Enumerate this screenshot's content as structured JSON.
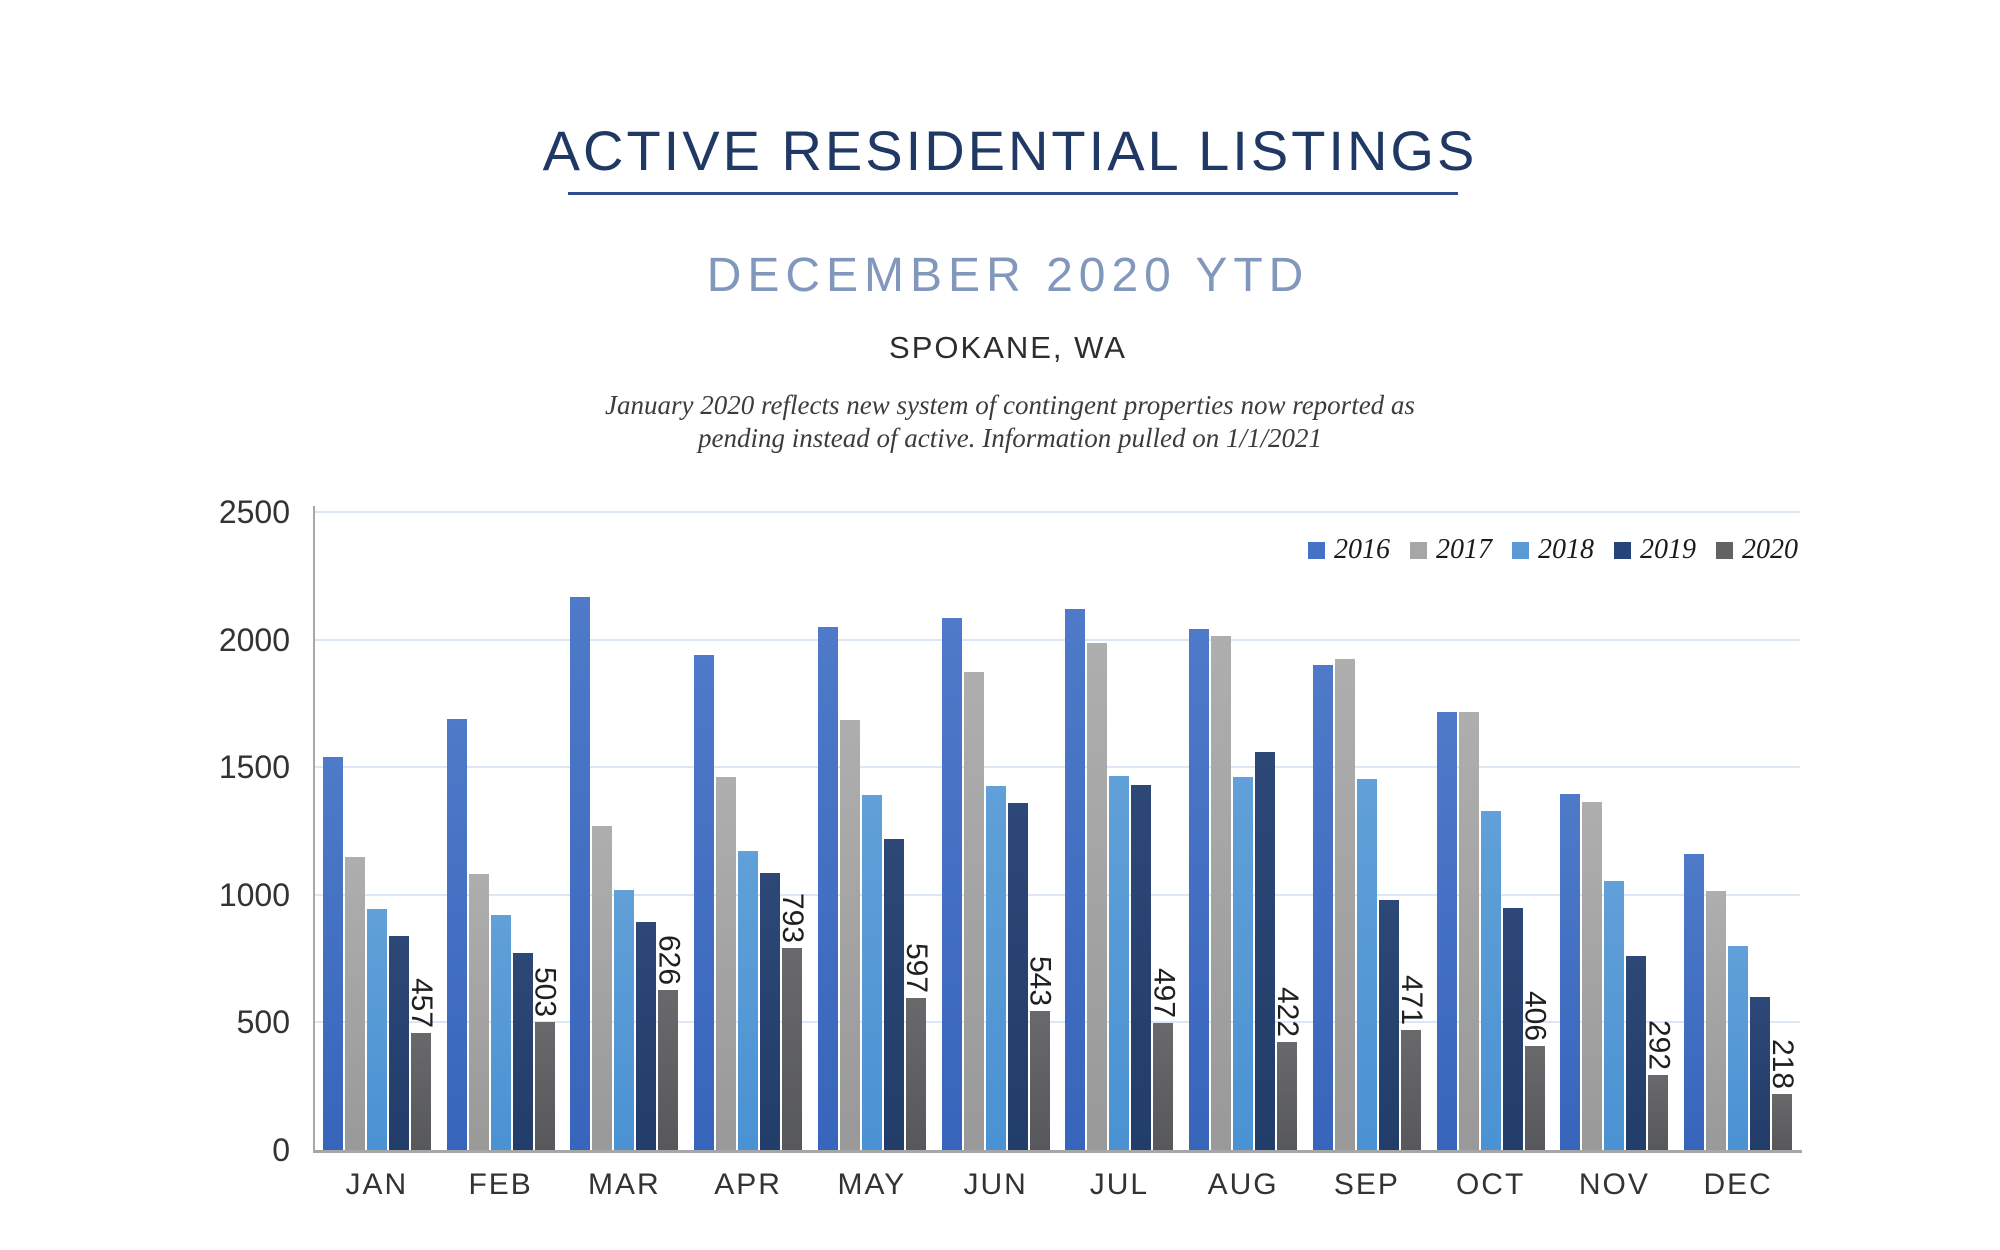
{
  "header": {
    "title": "ACTIVE RESIDENTIAL LISTINGS",
    "subtitle": "DECEMBER 2020 YTD",
    "location": "SPOKANE, WA",
    "note_line1": "January 2020 reflects new system of contingent properties now reported as",
    "note_line2": "pending instead of active.  Information pulled on 1/1/2021"
  },
  "colors": {
    "title": "#203864",
    "subtitle": "#8297bc",
    "gridline": "#dce6f4",
    "axis": "#a6a6a6",
    "data_label": "#1f1f1f"
  },
  "chart_data": {
    "type": "bar",
    "title": "Active residential listings by month, 2016-2020",
    "categories": [
      "JAN",
      "FEB",
      "MAR",
      "APR",
      "MAY",
      "JUN",
      "JUL",
      "AUG",
      "SEP",
      "OCT",
      "NOV",
      "DEC"
    ],
    "series": [
      {
        "name": "2016",
        "color": "#4472c4",
        "gradient_top": "#4e7ac9",
        "gradient_bottom": "#3765bb",
        "values": [
          1540,
          1690,
          2165,
          1940,
          2050,
          2085,
          2120,
          2040,
          1900,
          1715,
          1395,
          1160
        ]
      },
      {
        "name": "2017",
        "color": "#a6a6a6",
        "gradient_top": "#aeaeae",
        "gradient_bottom": "#999999",
        "values": [
          1150,
          1080,
          1270,
          1460,
          1685,
          1875,
          1985,
          2015,
          1925,
          1715,
          1365,
          1015
        ]
      },
      {
        "name": "2018",
        "color": "#5b9bd5",
        "gradient_top": "#61a0d8",
        "gradient_bottom": "#4a92d3",
        "values": [
          945,
          920,
          1020,
          1170,
          1390,
          1425,
          1465,
          1460,
          1455,
          1330,
          1055,
          800
        ]
      },
      {
        "name": "2019",
        "color": "#264478",
        "gradient_top": "#2d4777",
        "gradient_bottom": "#223d69",
        "values": [
          840,
          770,
          895,
          1085,
          1220,
          1360,
          1430,
          1560,
          980,
          950,
          760,
          600
        ]
      },
      {
        "name": "2020",
        "color": "#636363",
        "gradient_top": "#69696c",
        "gradient_bottom": "#57585b",
        "values": [
          457,
          503,
          626,
          793,
          597,
          543,
          497,
          422,
          471,
          406,
          292,
          218
        ],
        "data_labels": [
          "457",
          "503",
          "626",
          "793",
          "597",
          "543",
          "497",
          "422",
          "471",
          "406",
          "292",
          "218"
        ],
        "data_labels_rotation": 90
      }
    ],
    "ylabel": "",
    "xlabel": "",
    "y_axis": {
      "min": 0,
      "max": 2500,
      "step": 500,
      "tick_labels": [
        "0",
        "500",
        "1000",
        "1500",
        "2000",
        "2500"
      ]
    },
    "grid": true,
    "legend_position": "top-right",
    "legend_entries": [
      "2016",
      "2017",
      "2018",
      "2019",
      "2020"
    ]
  }
}
